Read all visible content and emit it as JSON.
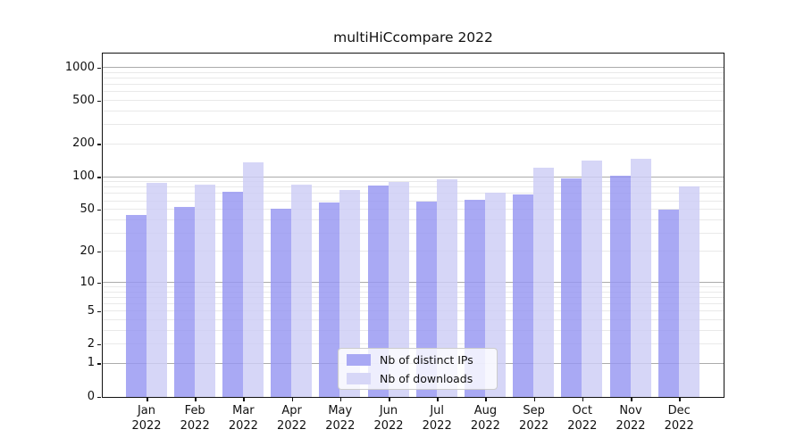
{
  "title": "multiHiCcompare 2022",
  "chart_data": {
    "type": "bar",
    "categories": [
      "Jan",
      "Feb",
      "Mar",
      "Apr",
      "May",
      "Jun",
      "Jul",
      "Aug",
      "Sep",
      "Oct",
      "Nov",
      "Dec"
    ],
    "x_year": "2022",
    "series": [
      {
        "name": "Nb of distinct IPs",
        "color": "#a9a9f4",
        "color_rgba": "rgba(150,150,242,0.82)",
        "values": [
          45,
          53,
          73,
          51,
          58,
          84,
          59,
          62,
          69,
          97,
          103,
          50
        ]
      },
      {
        "name": "Nb of downloads",
        "color": "#d7d7f7",
        "color_rgba": "rgba(205,205,245,0.82)",
        "values": [
          89,
          85,
          137,
          86,
          76,
          91,
          95,
          72,
          123,
          142,
          148,
          82
        ]
      }
    ],
    "yticks": [
      0,
      1,
      2,
      5,
      10,
      20,
      50,
      100,
      200,
      500,
      1000
    ],
    "scale": "log1p",
    "ylim": [
      0,
      1330
    ],
    "grid": true,
    "legend_position": "lower center"
  }
}
